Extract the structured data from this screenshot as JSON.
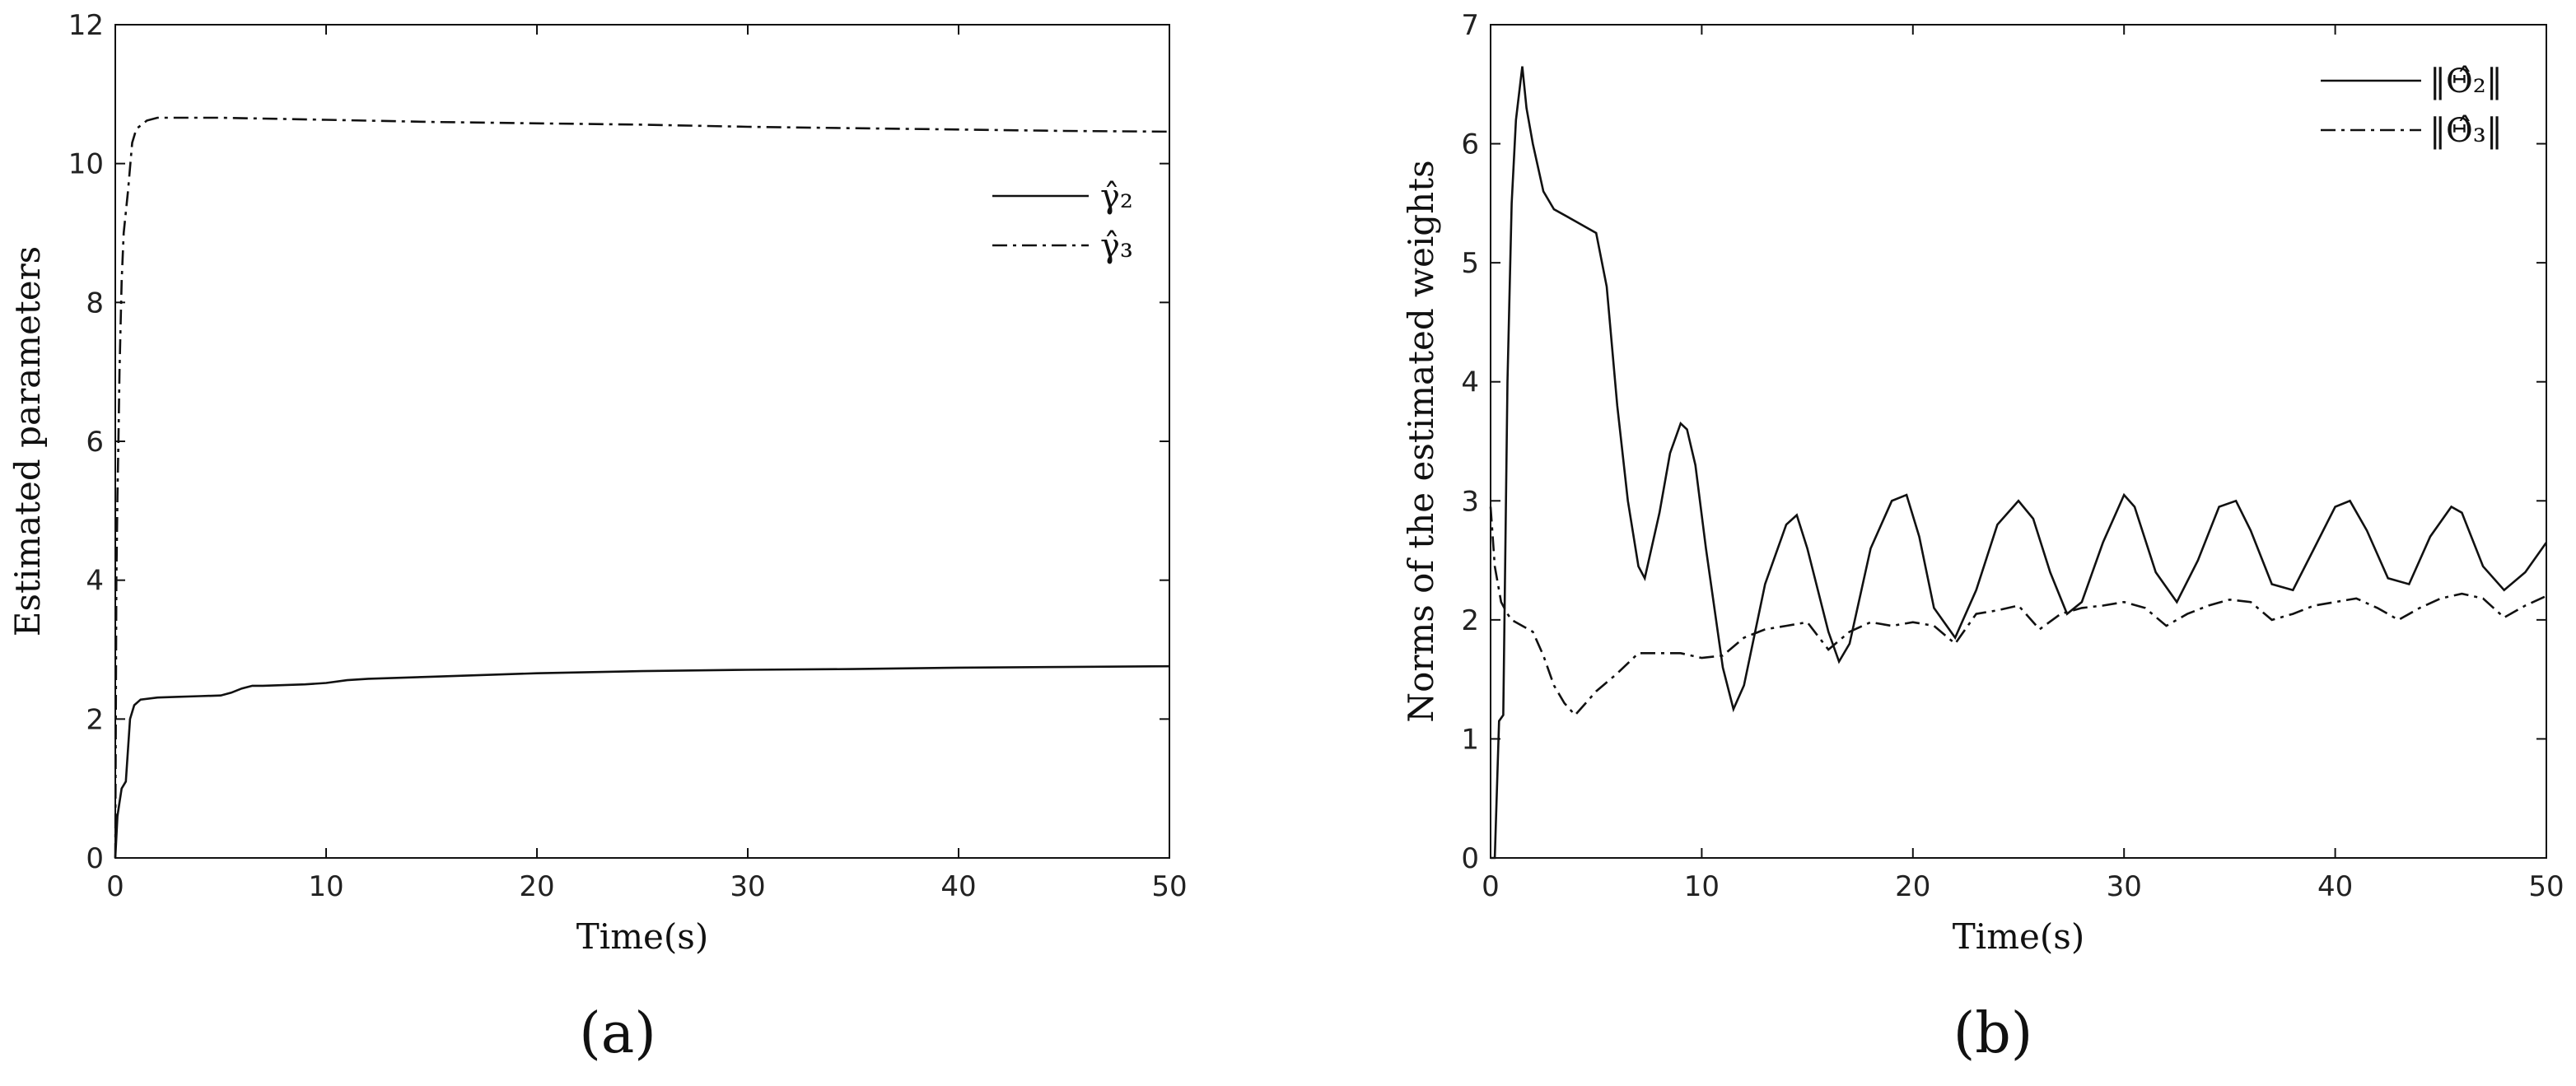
{
  "chart_data": [
    {
      "type": "line",
      "panel_label": "(a)",
      "xlabel": "Time(s)",
      "ylabel": "Estimated parameters",
      "xlim": [
        0,
        50
      ],
      "ylim": [
        0,
        12
      ],
      "xticks": [
        "0",
        "10",
        "20",
        "30",
        "40",
        "50"
      ],
      "yticks": [
        "0",
        "2",
        "4",
        "6",
        "8",
        "10",
        "12"
      ],
      "grid": false,
      "legend_position": "upper-right",
      "series": [
        {
          "name": "γ̂₂",
          "style": "solid",
          "x": [
            0,
            0.1,
            0.2,
            0.3,
            0.5,
            0.7,
            0.9,
            1.2,
            2,
            3,
            4,
            5,
            5.5,
            6,
            6.5,
            7,
            9,
            10,
            11,
            12,
            15,
            20,
            25,
            30,
            35,
            40,
            45,
            50
          ],
          "y": [
            0,
            0.6,
            0.8,
            1.0,
            1.1,
            2.0,
            2.2,
            2.28,
            2.31,
            2.32,
            2.33,
            2.34,
            2.38,
            2.44,
            2.48,
            2.48,
            2.5,
            2.52,
            2.56,
            2.58,
            2.61,
            2.66,
            2.69,
            2.71,
            2.72,
            2.74,
            2.75,
            2.76
          ]
        },
        {
          "name": "γ̂₃",
          "style": "dashdot",
          "x": [
            0,
            0.05,
            0.1,
            0.15,
            0.2,
            0.3,
            0.4,
            0.5,
            0.6,
            0.8,
            1.0,
            1.5,
            2,
            5,
            10,
            15,
            20,
            25,
            30,
            35,
            40,
            45,
            50
          ],
          "y": [
            0,
            4.0,
            5.2,
            6.0,
            7.0,
            8.3,
            9.0,
            9.3,
            9.6,
            10.3,
            10.5,
            10.62,
            10.66,
            10.66,
            10.63,
            10.6,
            10.58,
            10.56,
            10.53,
            10.51,
            10.49,
            10.47,
            10.46
          ]
        }
      ]
    },
    {
      "type": "line",
      "panel_label": "(b)",
      "xlabel": "Time(s)",
      "ylabel": "Norms of the estimated weights",
      "xlim": [
        0,
        50
      ],
      "ylim": [
        0,
        7
      ],
      "xticks": [
        "0",
        "10",
        "20",
        "30",
        "40",
        "50"
      ],
      "yticks": [
        "0",
        "1",
        "2",
        "3",
        "4",
        "5",
        "6",
        "7"
      ],
      "grid": false,
      "legend_position": "upper-right",
      "series": [
        {
          "name": "‖Θ̂₂‖",
          "style": "solid",
          "x": [
            0,
            0.2,
            0.4,
            0.6,
            0.8,
            1.0,
            1.2,
            1.5,
            1.7,
            2.0,
            2.5,
            3.0,
            4.0,
            5.0,
            5.5,
            6.0,
            6.5,
            7.0,
            7.3,
            8.0,
            8.5,
            9.0,
            9.3,
            9.7,
            10.2,
            11.0,
            11.5,
            12.0,
            13.0,
            14.0,
            14.5,
            15.0,
            16.0,
            16.5,
            17.0,
            18.0,
            19.0,
            19.7,
            20.3,
            21.0,
            22.0,
            23.0,
            24.0,
            25.0,
            25.7,
            26.5,
            27.3,
            28.0,
            29.0,
            30.0,
            30.5,
            31.5,
            32.5,
            33.5,
            34.5,
            35.3,
            36.0,
            37.0,
            38.0,
            39.0,
            40.0,
            40.7,
            41.5,
            42.5,
            43.5,
            44.5,
            45.5,
            46.0,
            47.0,
            48.0,
            49.0,
            50.0
          ],
          "y": [
            0,
            0,
            1.15,
            1.2,
            4.0,
            5.5,
            6.2,
            6.65,
            6.3,
            6.0,
            5.6,
            5.45,
            5.35,
            5.25,
            4.8,
            3.8,
            3.0,
            2.45,
            2.35,
            2.9,
            3.4,
            3.65,
            3.6,
            3.3,
            2.6,
            1.6,
            1.25,
            1.45,
            2.3,
            2.8,
            2.88,
            2.6,
            1.9,
            1.65,
            1.8,
            2.6,
            3.0,
            3.05,
            2.7,
            2.1,
            1.85,
            2.25,
            2.8,
            3.0,
            2.85,
            2.4,
            2.05,
            2.15,
            2.65,
            3.05,
            2.95,
            2.4,
            2.15,
            2.5,
            2.95,
            3.0,
            2.75,
            2.3,
            2.25,
            2.6,
            2.95,
            3.0,
            2.75,
            2.35,
            2.3,
            2.7,
            2.95,
            2.9,
            2.45,
            2.25,
            2.4,
            2.65
          ]
        },
        {
          "name": "‖Θ̂₃‖",
          "style": "dashdot",
          "x": [
            0,
            0.2,
            0.5,
            0.8,
            1.0,
            1.5,
            2.0,
            2.5,
            3.0,
            3.5,
            4.0,
            4.5,
            5.0,
            6.0,
            7.0,
            8.0,
            9.0,
            10.0,
            11.0,
            12.0,
            13.0,
            14.0,
            15.0,
            16.0,
            17.0,
            18.0,
            19.0,
            20.0,
            21.0,
            22.0,
            23.0,
            24.0,
            25.0,
            26.0,
            27.0,
            28.0,
            29.0,
            30.0,
            31.0,
            32.0,
            33.0,
            34.0,
            35.0,
            36.0,
            37.0,
            38.0,
            39.0,
            40.0,
            41.0,
            42.0,
            43.0,
            44.0,
            45.0,
            46.0,
            47.0,
            48.0,
            49.0,
            50.0
          ],
          "y": [
            2.95,
            2.45,
            2.15,
            2.05,
            2.0,
            1.95,
            1.9,
            1.7,
            1.45,
            1.3,
            1.2,
            1.3,
            1.4,
            1.55,
            1.72,
            1.72,
            1.72,
            1.68,
            1.7,
            1.85,
            1.92,
            1.95,
            1.98,
            1.75,
            1.9,
            1.98,
            1.95,
            1.98,
            1.95,
            1.8,
            2.05,
            2.08,
            2.12,
            1.92,
            2.05,
            2.1,
            2.12,
            2.15,
            2.1,
            1.95,
            2.05,
            2.12,
            2.17,
            2.15,
            2.0,
            2.05,
            2.12,
            2.15,
            2.18,
            2.1,
            2.0,
            2.1,
            2.18,
            2.22,
            2.18,
            2.02,
            2.12,
            2.2
          ]
        }
      ]
    }
  ]
}
